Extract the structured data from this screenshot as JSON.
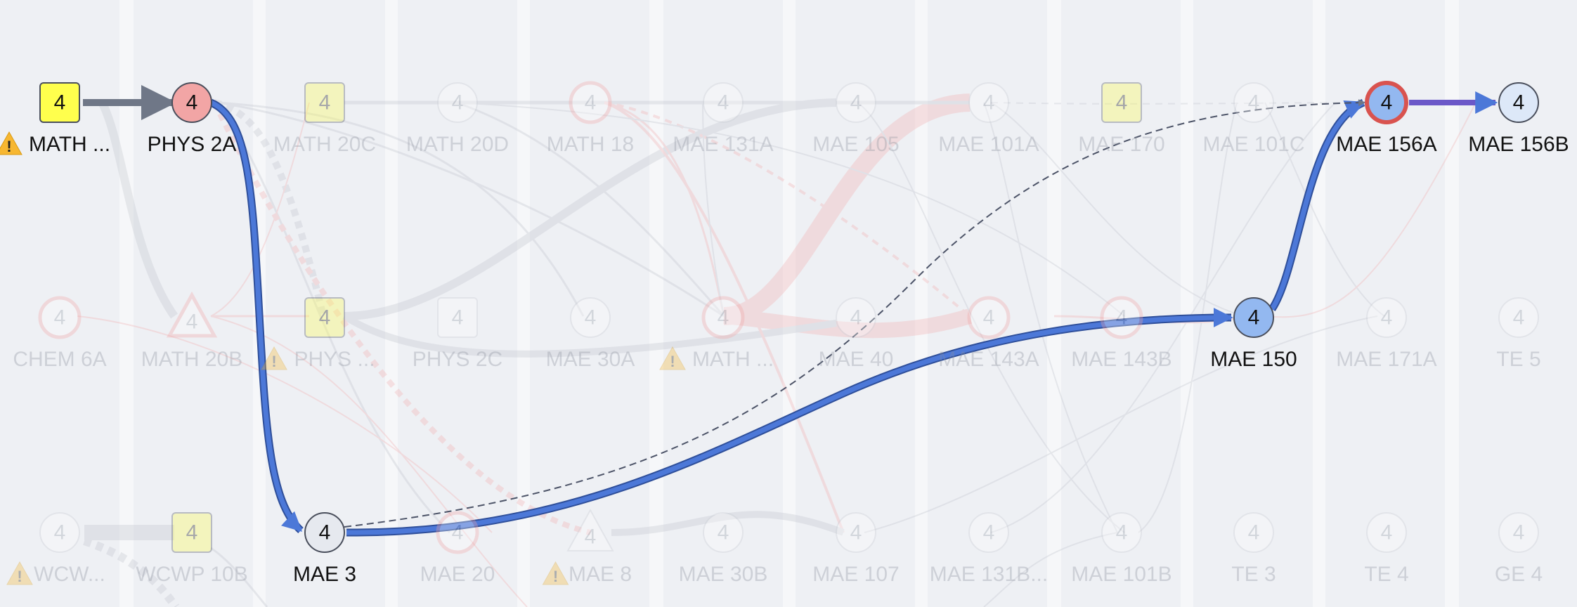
{
  "colors": {
    "background": "#f6f7f9",
    "column_band": "#eef0f4",
    "yellow_node": "#ffff4d",
    "pink_node": "#f2a5a5",
    "blue_node": "#93b8f0",
    "light_blue_node": "#dde8f8",
    "gray_node": "#e6e9ef",
    "highlight_edge": "#4c78d8",
    "dark_edge": "#6f7787",
    "red_ring": "#d9534f",
    "warning": "#f7b731"
  },
  "nodes": [
    {
      "id": "math20a",
      "label": "MATH ...",
      "units": "4",
      "shape": "square",
      "fill": "yellow",
      "warning": true,
      "active": true
    },
    {
      "id": "phys2a",
      "label": "PHYS 2A",
      "units": "4",
      "shape": "circle",
      "fill": "pink",
      "active": true
    },
    {
      "id": "math20c",
      "label": "MATH 20C",
      "units": "4",
      "shape": "square",
      "fill": "yellow",
      "active": false
    },
    {
      "id": "math20d",
      "label": "MATH 20D",
      "units": "4",
      "shape": "circle",
      "fill": "white",
      "active": false
    },
    {
      "id": "math18",
      "label": "MATH 18",
      "units": "4",
      "shape": "circle",
      "fill": "white",
      "ring": "pink",
      "active": false
    },
    {
      "id": "mae131a",
      "label": "MAE 131A",
      "units": "4",
      "shape": "circle",
      "fill": "white",
      "active": false
    },
    {
      "id": "mae105",
      "label": "MAE 105",
      "units": "4",
      "shape": "circle",
      "fill": "white",
      "active": false
    },
    {
      "id": "mae101a",
      "label": "MAE 101A",
      "units": "4",
      "shape": "circle",
      "fill": "white",
      "active": false
    },
    {
      "id": "mae170",
      "label": "MAE 170",
      "units": "4",
      "shape": "square",
      "fill": "yellow",
      "active": false
    },
    {
      "id": "mae101c",
      "label": "MAE 101C",
      "units": "4",
      "shape": "circle",
      "fill": "white",
      "active": false
    },
    {
      "id": "mae156a",
      "label": "MAE 156A",
      "units": "4",
      "shape": "circle",
      "fill": "blue",
      "ring": "red",
      "active": true
    },
    {
      "id": "mae156b",
      "label": "MAE 156B",
      "units": "4",
      "shape": "circle",
      "fill": "light_blue",
      "active": true
    },
    {
      "id": "chem6a",
      "label": "CHEM 6A",
      "units": "4",
      "shape": "circle",
      "fill": "white",
      "ring": "pink",
      "active": false
    },
    {
      "id": "math20b",
      "label": "MATH 20B",
      "units": "4",
      "shape": "triangle",
      "fill": "white",
      "ring": "pink",
      "active": false
    },
    {
      "id": "phys2b",
      "label": "PHYS ...",
      "units": "4",
      "shape": "square",
      "fill": "yellow",
      "warning": true,
      "active": false
    },
    {
      "id": "phys2c",
      "label": "PHYS 2C",
      "units": "4",
      "shape": "square",
      "fill": "white",
      "active": false
    },
    {
      "id": "mae30a",
      "label": "MAE 30A",
      "units": "4",
      "shape": "circle",
      "fill": "white",
      "active": false
    },
    {
      "id": "math20e",
      "label": "MATH ...",
      "units": "4",
      "shape": "circle",
      "fill": "white",
      "ring": "pink",
      "warning": true,
      "active": false
    },
    {
      "id": "mae40",
      "label": "MAE 40",
      "units": "4",
      "shape": "circle",
      "fill": "white",
      "active": false
    },
    {
      "id": "mae143a",
      "label": "MAE 143A",
      "units": "4",
      "shape": "circle",
      "fill": "white",
      "ring": "pink",
      "active": false
    },
    {
      "id": "mae143b",
      "label": "MAE 143B",
      "units": "4",
      "shape": "circle",
      "fill": "white",
      "ring": "pink",
      "active": false
    },
    {
      "id": "mae150",
      "label": "MAE 150",
      "units": "4",
      "shape": "circle",
      "fill": "blue",
      "active": true
    },
    {
      "id": "mae171a",
      "label": "MAE 171A",
      "units": "4",
      "shape": "circle",
      "fill": "white",
      "active": false
    },
    {
      "id": "te5",
      "label": "TE 5",
      "units": "4",
      "shape": "circle",
      "fill": "white",
      "active": false
    },
    {
      "id": "wcwp10a",
      "label": "WCW...",
      "units": "4",
      "shape": "circle",
      "fill": "white",
      "warning": true,
      "active": false
    },
    {
      "id": "wcwp10b",
      "label": "WCWP 10B",
      "units": "4",
      "shape": "square",
      "fill": "yellow",
      "active": false
    },
    {
      "id": "mae3",
      "label": "MAE 3",
      "units": "4",
      "shape": "circle",
      "fill": "gray",
      "active": true
    },
    {
      "id": "mae20",
      "label": "MAE 20",
      "units": "4",
      "shape": "circle",
      "fill": "white",
      "ring": "pink",
      "active": false
    },
    {
      "id": "mae8",
      "label": "MAE 8",
      "units": "4",
      "shape": "triangle",
      "fill": "white",
      "warning": true,
      "active": false
    },
    {
      "id": "mae30b",
      "label": "MAE 30B",
      "units": "4",
      "shape": "circle",
      "fill": "white",
      "active": false
    },
    {
      "id": "mae107",
      "label": "MAE 107",
      "units": "4",
      "shape": "circle",
      "fill": "white",
      "active": false
    },
    {
      "id": "mae131b",
      "label": "MAE 131B...",
      "units": "4",
      "shape": "circle",
      "fill": "white",
      "active": false
    },
    {
      "id": "mae101b",
      "label": "MAE 101B",
      "units": "4",
      "shape": "circle",
      "fill": "white",
      "active": false
    },
    {
      "id": "te3",
      "label": "TE 3",
      "units": "4",
      "shape": "circle",
      "fill": "white",
      "active": false
    },
    {
      "id": "te4",
      "label": "TE 4",
      "units": "4",
      "shape": "circle",
      "fill": "white",
      "active": false
    },
    {
      "id": "ge4",
      "label": "GE 4",
      "units": "4",
      "shape": "circle",
      "fill": "white",
      "active": false
    }
  ],
  "edges": [
    {
      "from": "math20a",
      "to": "phys2a",
      "style": "dark"
    },
    {
      "from": "phys2a",
      "to": "mae3",
      "style": "highlight"
    },
    {
      "from": "mae3",
      "to": "mae150",
      "style": "highlight"
    },
    {
      "from": "mae150",
      "to": "mae156a",
      "style": "highlight"
    },
    {
      "from": "mae156a",
      "to": "mae156b",
      "style": "highlight"
    },
    {
      "from": "mae3",
      "to": "mae156a",
      "style": "dashed_dark"
    }
  ]
}
